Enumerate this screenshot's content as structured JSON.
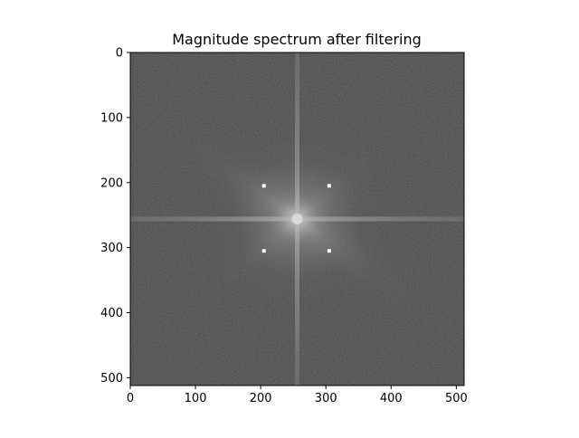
{
  "chart_data": {
    "type": "heatmap",
    "title": "Magnitude spectrum after filtering",
    "xlabel": "",
    "ylabel": "",
    "xlim": [
      0,
      512
    ],
    "ylim": [
      512,
      0
    ],
    "x_ticks": [
      0,
      100,
      200,
      300,
      400,
      500
    ],
    "y_ticks": [
      0,
      100,
      200,
      300,
      400,
      500
    ],
    "grid": false,
    "colormap": "gray",
    "image_size": [
      512,
      512
    ],
    "spectrum_center": [
      256,
      256
    ],
    "notch_points": [
      {
        "x": 205,
        "y": 205
      },
      {
        "x": 305,
        "y": 205
      },
      {
        "x": 205,
        "y": 305
      },
      {
        "x": 305,
        "y": 305
      }
    ],
    "colors": {
      "background_gray": "#464646",
      "notch_marker": "#ffffff"
    }
  }
}
